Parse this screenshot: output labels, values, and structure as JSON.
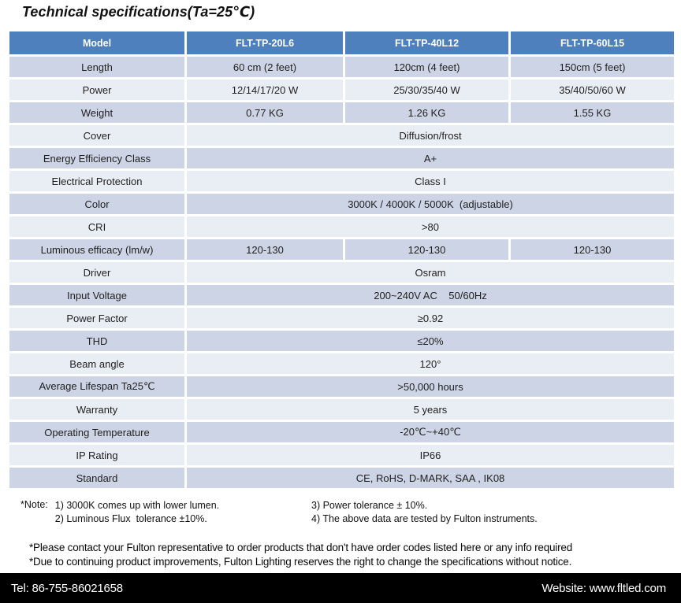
{
  "page": {
    "title": "Technical specifications(Ta=25℃)"
  },
  "table": {
    "header": {
      "model_label": "Model",
      "columns": [
        "FLT-TP-20L6",
        "FLT-TP-40L12",
        "FLT-TP-60L15"
      ]
    },
    "rows": [
      {
        "label": "Length",
        "values": [
          "60 cm (2 feet)",
          "120cm (4 feet)",
          "150cm (5 feet)"
        ]
      },
      {
        "label": "Power",
        "values": [
          "12/14/17/20 W",
          "25/30/35/40 W",
          "35/40/50/60 W"
        ]
      },
      {
        "label": "Weight",
        "values": [
          "0.77 KG",
          "1.26 KG",
          "1.55 KG"
        ]
      },
      {
        "label": "Cover",
        "value": "Diffusion/frost"
      },
      {
        "label": "Energy Efficiency Class",
        "value": "A+"
      },
      {
        "label": "Electrical Protection",
        "value": "Class I"
      },
      {
        "label": "Color",
        "value": "3000K / 4000K / 5000K  (adjustable)"
      },
      {
        "label": "CRI",
        "value": ">80"
      },
      {
        "label": "Luminous efficacy (lm/w)",
        "values": [
          "120-130",
          "120-130",
          "120-130"
        ]
      },
      {
        "label": "Driver",
        "value": "Osram"
      },
      {
        "label": "Input Voltage",
        "value": "200~240V AC    50/60Hz"
      },
      {
        "label": "Power Factor",
        "value": "≥0.92"
      },
      {
        "label": "THD",
        "value": "≤20%"
      },
      {
        "label": "Beam angle",
        "value": "120°"
      },
      {
        "label": "Average Lifespan Ta25℃",
        "value": ">50,000 hours"
      },
      {
        "label": "Warranty",
        "value": "5 years"
      },
      {
        "label": "Operating Temperature",
        "value": "-20℃~+40℃"
      },
      {
        "label": "IP Rating",
        "value": "IP66"
      },
      {
        "label": "Standard",
        "value": "CE, RoHS, D-MARK, SAA , IK08"
      }
    ]
  },
  "notes": {
    "label": "*Note:",
    "left_items": [
      "1) 3000K comes up with lower lumen.",
      "2) Luminous Flux  tolerance ±10%."
    ],
    "right_items": [
      "3) Power tolerance ± 10%.",
      "4) The above data are tested by Fulton instruments."
    ]
  },
  "disclaimers": [
    "*Please contact your Fulton representative to order products that don't have order codes listed here or any info required",
    "*Due to continuing product improvements, Fulton Lighting reserves the right to change the specifications without notice."
  ],
  "footer": {
    "tel": "Tel: 86-755-86021658",
    "website": "Website: www.fltled.com"
  },
  "colors": {
    "header_bg": "#4e80bd",
    "header_text": "#ffffff",
    "row_dark": "#ccd4e5",
    "row_light": "#e9edf4",
    "footer_bg": "#000000",
    "footer_text": "#ffffff"
  }
}
